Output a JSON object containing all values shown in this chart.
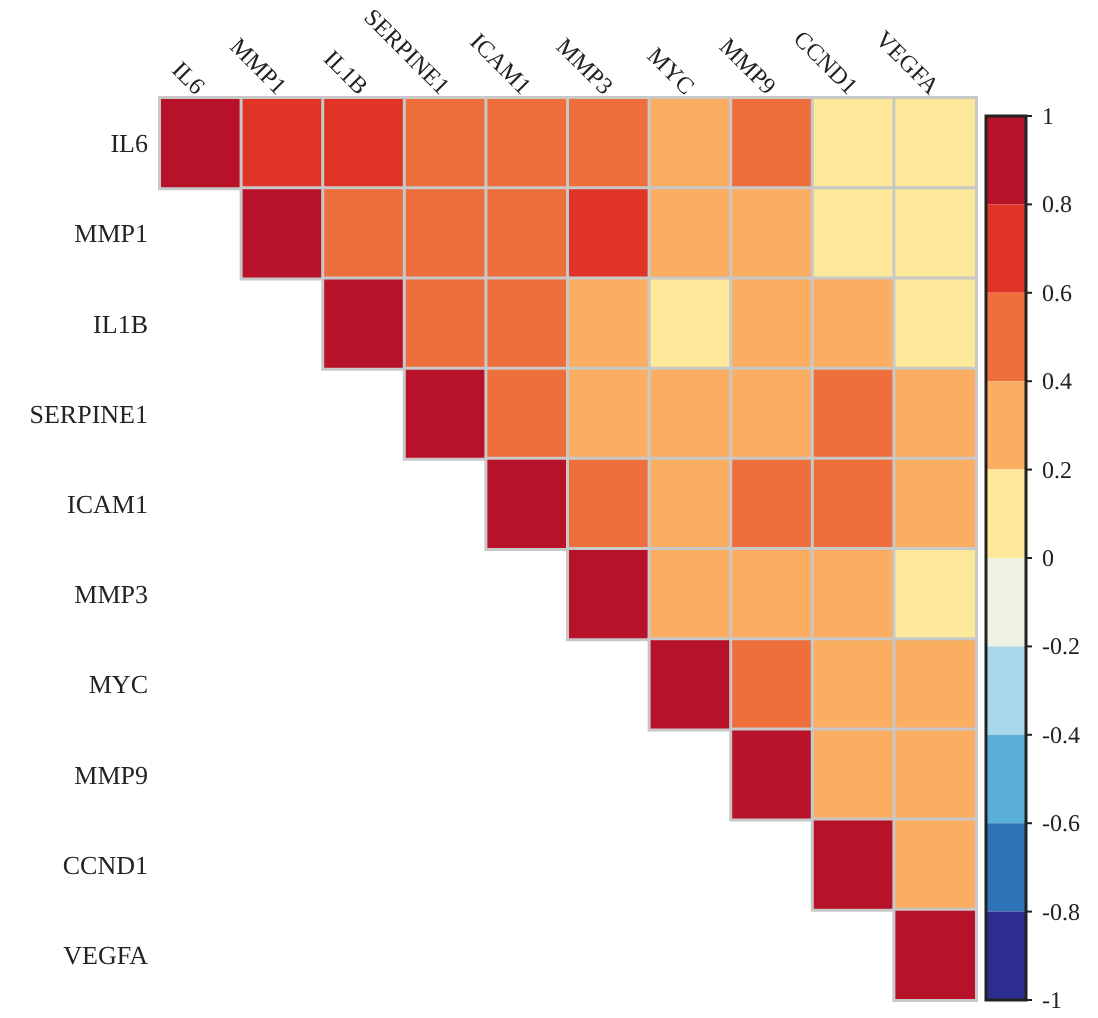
{
  "chart_data": {
    "type": "heatmap",
    "categories": [
      "IL6",
      "MMP1",
      "IL1B",
      "SERPINE1",
      "ICAM1",
      "MMP3",
      "MYC",
      "MMP9",
      "CCND1",
      "VEGFA"
    ],
    "y_categories": [
      "IL6",
      "MMP1",
      "IL1B",
      "SERPINE1",
      "ICAM1",
      "MMP3",
      "MYC",
      "MMP9",
      "CCND1",
      "VEGFA"
    ],
    "cells": [
      [
        1,
        0.75,
        0.7,
        0.6,
        0.55,
        0.52,
        0.25,
        0.45,
        0.15,
        0.15
      ],
      [
        null,
        1,
        0.6,
        0.55,
        0.52,
        0.75,
        0.2,
        0.35,
        0.15,
        0.12
      ],
      [
        null,
        null,
        1,
        0.6,
        0.4,
        0.35,
        0.15,
        0.35,
        0.25,
        0.1
      ],
      [
        null,
        null,
        null,
        1,
        0.6,
        0.35,
        0.25,
        0.35,
        0.52,
        0.3
      ],
      [
        null,
        null,
        null,
        null,
        1,
        0.52,
        0.35,
        0.52,
        0.52,
        0.35
      ],
      [
        null,
        null,
        null,
        null,
        null,
        1,
        0.3,
        0.25,
        0.25,
        0.15
      ],
      [
        null,
        null,
        null,
        null,
        null,
        null,
        1,
        0.45,
        0.3,
        0.35
      ],
      [
        null,
        null,
        null,
        null,
        null,
        null,
        null,
        1,
        0.3,
        0.35
      ],
      [
        null,
        null,
        null,
        null,
        null,
        null,
        null,
        null,
        1,
        0.35
      ],
      [
        null,
        null,
        null,
        null,
        null,
        null,
        null,
        null,
        null,
        1
      ]
    ],
    "clim": [
      -1,
      1
    ],
    "cticks": [
      -1,
      -0.8,
      -0.6,
      -0.4,
      -0.2,
      0,
      0.2,
      0.4,
      0.6,
      0.8,
      1
    ],
    "colors": [
      "#2c2d8e",
      "#2c74b6",
      "#5aafd8",
      "#a9d8ea",
      "#eef2e0",
      "#fee99a",
      "#fbad61",
      "#ee6e3c",
      "#e03426",
      "#b8122a"
    ]
  }
}
